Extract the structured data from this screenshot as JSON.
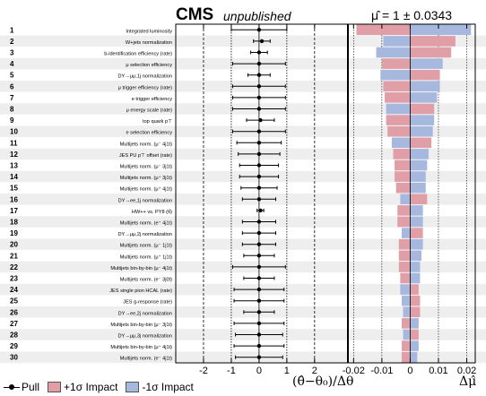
{
  "header": {
    "cms": "CMS",
    "status": "unpublished",
    "poi": "μ̂ = 1 ± 0.0343"
  },
  "legend": {
    "pull": "Pull",
    "up": "+1σ Impact",
    "down": "-1σ Impact"
  },
  "colors": {
    "up": "#e09ea6",
    "down": "#a6b8de",
    "row_shade": "#eeeeee"
  },
  "chart_data": {
    "type": "impact",
    "pull_xlim": [
      -3,
      3.2
    ],
    "impact_xlim": [
      -0.022,
      0.023
    ],
    "pull_ticks": [
      "-2",
      "-1",
      "0",
      "1",
      "2"
    ],
    "pull_tick_values": [
      -2,
      -1,
      0,
      1,
      2
    ],
    "impact_ticks": [
      "-0.02",
      "-0.01",
      "0",
      "0.01",
      "0.02"
    ],
    "impact_tick_values": [
      -0.02,
      -0.01,
      0,
      0.01,
      0.02
    ],
    "xlabel_pull": "(θ̂−θ₀)/Δθ",
    "xlabel_impact": "Δμ̂",
    "rows": [
      {
        "rank": "1",
        "name": "Integrated luminosity",
        "pull": 0.0,
        "err_lo": 1.0,
        "err_hi": 1.0,
        "up": -0.019,
        "down": 0.0215
      },
      {
        "rank": "2",
        "name": "W+jets normalization",
        "pull": 0.1,
        "err_lo": 0.3,
        "err_hi": 0.3,
        "up": 0.016,
        "down": -0.0095
      },
      {
        "rank": "3",
        "name": "b-identification efficiency (rate)",
        "pull": 0.0,
        "err_lo": 0.3,
        "err_hi": 0.3,
        "up": 0.0145,
        "down": -0.012
      },
      {
        "rank": "4",
        "name": "μ selection efficiency",
        "pull": 0.0,
        "err_lo": 0.95,
        "err_hi": 0.95,
        "up": -0.01,
        "down": 0.0115
      },
      {
        "rank": "5",
        "name": "DY→μμ,1j normalization",
        "pull": 0.0,
        "err_lo": 0.4,
        "err_hi": 0.4,
        "up": 0.0105,
        "down": -0.0105
      },
      {
        "rank": "6",
        "name": "μ trigger efficiency (rate)",
        "pull": 0.0,
        "err_lo": 0.95,
        "err_hi": 0.95,
        "up": -0.0095,
        "down": 0.0105
      },
      {
        "rank": "7",
        "name": "e trigger efficiency",
        "pull": 0.0,
        "err_lo": 0.95,
        "err_hi": 0.95,
        "up": -0.009,
        "down": 0.0095
      },
      {
        "rank": "8",
        "name": "μ energy scale (rate)",
        "pull": 0.0,
        "err_lo": 0.95,
        "err_hi": 0.95,
        "up": 0.0085,
        "down": -0.0085
      },
      {
        "rank": "9",
        "name": "top quark p⊤",
        "pull": 0.05,
        "err_lo": 0.5,
        "err_hi": 0.5,
        "up": -0.0085,
        "down": 0.0085
      },
      {
        "rank": "10",
        "name": "e selection efficiency",
        "pull": 0.0,
        "err_lo": 0.95,
        "err_hi": 0.95,
        "up": -0.008,
        "down": 0.008
      },
      {
        "rank": "11",
        "name": "Multijets norm. (μ⁻ 4j1t)",
        "pull": 0.0,
        "err_lo": 0.8,
        "err_hi": 0.8,
        "up": 0.0075,
        "down": -0.0065
      },
      {
        "rank": "12",
        "name": "JES PU p⊤ offset (rate)",
        "pull": 0.0,
        "err_lo": 0.75,
        "err_hi": 0.75,
        "up": -0.006,
        "down": 0.0065
      },
      {
        "rank": "13",
        "name": "Multijets norm. (μ⁻ 3j1t)",
        "pull": 0.0,
        "err_lo": 0.7,
        "err_hi": 0.7,
        "up": -0.0055,
        "down": 0.006
      },
      {
        "rank": "14",
        "name": "Multijets norm. (μ⁺ 3j1t)",
        "pull": 0.0,
        "err_lo": 0.7,
        "err_hi": 0.7,
        "up": -0.0055,
        "down": 0.0055
      },
      {
        "rank": "15",
        "name": "Multijets norm. (μ⁺ 4j1t)",
        "pull": 0.0,
        "err_lo": 0.65,
        "err_hi": 0.65,
        "up": -0.005,
        "down": 0.0055
      },
      {
        "rank": "16",
        "name": "DY→ee,1j normalization",
        "pull": 0.0,
        "err_lo": 0.6,
        "err_hi": 0.6,
        "up": 0.006,
        "down": -0.0035
      },
      {
        "rank": "17",
        "name": "HW++ vs. PY8 (tt̄)",
        "pull": 0.05,
        "err_lo": 0.12,
        "err_hi": 0.12,
        "up": -0.0045,
        "down": 0.0045
      },
      {
        "rank": "18",
        "name": "Multijets norm. (e⁺ 4j1t)",
        "pull": 0.0,
        "err_lo": 0.6,
        "err_hi": 0.6,
        "up": -0.0045,
        "down": 0.0045
      },
      {
        "rank": "19",
        "name": "DY→μμ,2j normalization",
        "pull": 0.0,
        "err_lo": 0.6,
        "err_hi": 0.6,
        "up": 0.0045,
        "down": -0.003
      },
      {
        "rank": "20",
        "name": "Multijets norm. (μ⁻ 1j1t)",
        "pull": 0.0,
        "err_lo": 0.6,
        "err_hi": 0.6,
        "up": -0.004,
        "down": 0.0045
      },
      {
        "rank": "21",
        "name": "Multijets norm. (μ⁺ 1j1t)",
        "pull": 0.0,
        "err_lo": 0.55,
        "err_hi": 0.55,
        "up": -0.004,
        "down": 0.004
      },
      {
        "rank": "22",
        "name": "Multijets bin-by-bin (μ⁻ 4j1t)",
        "pull": 0.0,
        "err_lo": 0.95,
        "err_hi": 0.95,
        "up": -0.004,
        "down": 0.0035
      },
      {
        "rank": "23",
        "name": "Multijets norm. (e⁻ 3j0t)",
        "pull": 0.0,
        "err_lo": 0.55,
        "err_hi": 0.55,
        "up": -0.0035,
        "down": 0.0035
      },
      {
        "rank": "24",
        "name": "JES single pion HCAL (rate)",
        "pull": 0.0,
        "err_lo": 0.9,
        "err_hi": 0.9,
        "up": 0.003,
        "down": -0.0035
      },
      {
        "rank": "25",
        "name": "JES g-response (rate)",
        "pull": 0.0,
        "err_lo": 0.9,
        "err_hi": 0.9,
        "up": 0.0035,
        "down": -0.003
      },
      {
        "rank": "26",
        "name": "DY→ee,2j normalization",
        "pull": 0.0,
        "err_lo": 0.55,
        "err_hi": 0.55,
        "up": 0.0035,
        "down": -0.0025
      },
      {
        "rank": "27",
        "name": "Multijets bin-by-bin (μ⁻ 3j1t)",
        "pull": 0.0,
        "err_lo": 0.9,
        "err_hi": 0.9,
        "up": -0.003,
        "down": 0.003
      },
      {
        "rank": "28",
        "name": "DY→μμ,3j normalization",
        "pull": 0.0,
        "err_lo": 0.85,
        "err_hi": 0.85,
        "up": 0.003,
        "down": -0.0025
      },
      {
        "rank": "29",
        "name": "Multijets bin-by-bin (μ⁺ 4j1t)",
        "pull": 0.0,
        "err_lo": 0.9,
        "err_hi": 0.9,
        "up": -0.003,
        "down": 0.003
      },
      {
        "rank": "30",
        "name": "Multijets norm. (e⁻ 4j1t)",
        "pull": 0.0,
        "err_lo": 0.85,
        "err_hi": 0.85,
        "up": -0.003,
        "down": 0.0025
      }
    ]
  }
}
